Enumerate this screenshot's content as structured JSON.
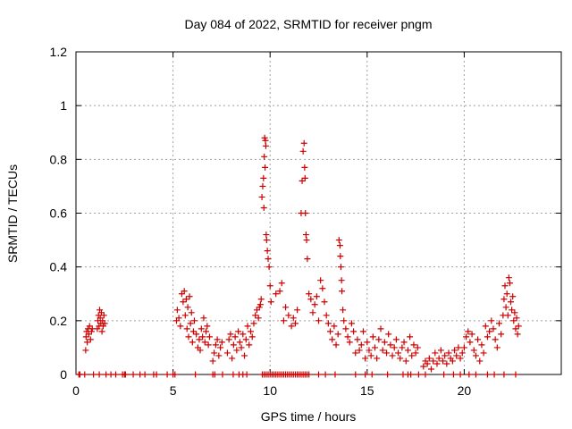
{
  "chart_data": {
    "type": "scatter",
    "title": "Day 084 of 2022, SRMTID for receiver pngm",
    "xlabel": "GPS time / hours",
    "ylabel": "SRMTID / TECUs",
    "xlim": [
      0,
      25
    ],
    "ylim": [
      0,
      1.2
    ],
    "x_ticks": [
      0,
      5,
      10,
      15,
      20
    ],
    "x_tick_labels": [
      "0",
      "5",
      "10",
      "15",
      "20"
    ],
    "y_ticks": [
      0,
      0.2,
      0.4,
      0.6,
      0.8,
      1.0,
      1.2
    ],
    "y_tick_labels": [
      "0",
      "0.2",
      "0.4",
      "0.6",
      "0.8",
      "1",
      "1.2"
    ],
    "grid": true,
    "legend": "none",
    "marker": "+",
    "marker_color": "#cc0000",
    "series": [
      {
        "name": "SRMTID",
        "x": [
          0.5,
          0.52,
          0.55,
          0.58,
          0.62,
          0.66,
          0.7,
          0.75,
          0.8,
          0.84,
          1.1,
          1.13,
          1.16,
          1.19,
          1.22,
          1.25,
          1.28,
          1.31,
          1.34,
          1.37,
          1.4,
          1.44,
          1.48,
          5.18,
          5.22,
          5.3,
          5.38,
          5.45,
          5.52,
          5.58,
          5.63,
          5.68,
          5.72,
          5.76,
          5.8,
          5.85,
          5.9,
          5.95,
          6.0,
          6.05,
          6.1,
          6.2,
          6.28,
          6.35,
          6.4,
          6.46,
          6.52,
          6.58,
          6.64,
          6.7,
          6.76,
          6.82,
          6.88,
          7.05,
          7.12,
          7.2,
          7.28,
          7.36,
          7.44,
          7.52,
          7.8,
          7.88,
          7.96,
          8.04,
          8.12,
          8.2,
          8.28,
          8.36,
          8.44,
          8.52,
          8.6,
          8.68,
          8.76,
          8.84,
          8.92,
          9.0,
          9.08,
          9.16,
          9.24,
          9.32,
          9.4,
          9.45,
          9.5,
          9.54,
          9.58,
          9.62,
          9.66,
          9.68,
          9.7,
          9.72,
          9.74,
          9.76,
          9.78,
          9.8,
          9.82,
          9.86,
          9.9,
          9.95,
          10.0,
          10.05,
          10.3,
          10.5,
          10.6,
          10.7,
          10.8,
          10.95,
          11.1,
          11.2,
          11.3,
          11.4,
          11.6,
          11.65,
          11.7,
          11.75,
          11.78,
          11.8,
          11.82,
          11.85,
          11.88,
          11.92,
          12.0,
          12.1,
          12.2,
          12.3,
          12.4,
          12.5,
          12.6,
          12.7,
          12.8,
          12.9,
          13.0,
          13.1,
          13.2,
          13.3,
          13.4,
          13.5,
          13.55,
          13.6,
          13.62,
          13.65,
          13.68,
          13.7,
          13.75,
          13.8,
          13.9,
          14.0,
          14.1,
          14.2,
          14.3,
          14.4,
          14.5,
          14.6,
          14.7,
          14.8,
          14.9,
          15.0,
          15.1,
          15.2,
          15.3,
          15.4,
          15.5,
          15.6,
          15.7,
          15.8,
          15.9,
          16.0,
          16.1,
          16.2,
          16.3,
          16.4,
          16.5,
          16.6,
          16.7,
          16.8,
          16.9,
          17.0,
          17.1,
          17.2,
          17.3,
          17.4,
          17.5,
          17.6,
          17.9,
          18.0,
          18.1,
          18.2,
          18.3,
          18.4,
          18.5,
          18.6,
          18.7,
          18.8,
          18.9,
          19.0,
          19.1,
          19.2,
          19.3,
          19.4,
          19.5,
          19.6,
          19.7,
          19.8,
          19.9,
          20.0,
          20.1,
          20.2,
          20.3,
          20.4,
          20.5,
          20.6,
          20.7,
          20.8,
          20.9,
          21.0,
          21.1,
          21.2,
          21.3,
          21.4,
          21.5,
          21.6,
          21.7,
          21.8,
          21.9,
          22.0,
          22.05,
          22.1,
          22.15,
          22.2,
          22.25,
          22.3,
          22.35,
          22.4,
          22.45,
          22.5,
          22.55,
          22.6,
          22.65,
          22.7,
          22.75,
          22.8,
          9.6,
          9.7,
          9.8,
          9.9,
          10.0,
          10.1,
          10.2,
          10.3,
          10.4,
          10.5,
          10.6,
          10.7,
          10.8,
          10.9,
          11.0,
          11.1,
          11.2,
          11.3,
          11.4,
          11.5,
          11.6,
          11.7,
          11.8,
          11.9,
          12.0,
          0.15,
          0.2,
          0.45,
          0.9,
          1.2,
          1.55,
          1.8,
          2.05,
          2.4,
          2.5,
          2.55,
          2.95,
          3.3,
          3.55,
          4.0,
          4.15,
          4.7,
          5.0,
          5.1,
          6.15,
          7.05,
          7.15,
          7.55,
          8.1,
          8.4,
          8.6,
          8.8,
          12.5,
          12.85,
          13.35,
          14.4,
          14.9,
          15.25,
          16.05,
          16.85,
          17.1,
          17.25,
          17.65,
          18.0,
          18.95,
          19.45,
          19.8,
          20.25,
          20.6,
          21.2,
          21.55,
          22.05,
          22.65
        ],
        "y": [
          0.09,
          0.14,
          0.16,
          0.12,
          0.17,
          0.15,
          0.18,
          0.13,
          0.16,
          0.17,
          0.17,
          0.2,
          0.22,
          0.18,
          0.24,
          0.21,
          0.19,
          0.23,
          0.16,
          0.2,
          0.18,
          0.22,
          0.19,
          0.2,
          0.24,
          0.21,
          0.18,
          0.3,
          0.27,
          0.31,
          0.22,
          0.28,
          0.17,
          0.25,
          0.14,
          0.29,
          0.19,
          0.23,
          0.12,
          0.16,
          0.2,
          0.15,
          0.1,
          0.13,
          0.09,
          0.17,
          0.14,
          0.21,
          0.12,
          0.16,
          0.18,
          0.11,
          0.14,
          0.05,
          0.08,
          0.11,
          0.13,
          0.07,
          0.1,
          0.12,
          0.08,
          0.13,
          0.15,
          0.06,
          0.11,
          0.14,
          0.09,
          0.16,
          0.12,
          0.1,
          0.15,
          0.07,
          0.13,
          0.18,
          0.11,
          0.16,
          0.14,
          0.19,
          0.22,
          0.24,
          0.21,
          0.25,
          0.26,
          0.28,
          0.66,
          0.7,
          0.73,
          0.62,
          0.81,
          0.88,
          0.77,
          0.87,
          0.85,
          0.52,
          0.5,
          0.46,
          0.43,
          0.4,
          0.33,
          0.27,
          0.3,
          0.31,
          0.34,
          0.2,
          0.25,
          0.22,
          0.18,
          0.21,
          0.19,
          0.24,
          0.6,
          0.72,
          0.83,
          0.86,
          0.77,
          0.73,
          0.6,
          0.52,
          0.5,
          0.43,
          0.3,
          0.28,
          0.23,
          0.26,
          0.29,
          0.2,
          0.35,
          0.32,
          0.27,
          0.22,
          0.19,
          0.16,
          0.13,
          0.18,
          0.11,
          0.15,
          0.5,
          0.48,
          0.44,
          0.4,
          0.35,
          0.31,
          0.24,
          0.2,
          0.17,
          0.14,
          0.12,
          0.19,
          0.16,
          0.08,
          0.13,
          0.09,
          0.11,
          0.16,
          0.06,
          0.12,
          0.09,
          0.07,
          0.14,
          0.1,
          0.06,
          0.13,
          0.17,
          0.09,
          0.12,
          0.08,
          0.15,
          0.11,
          0.07,
          0.1,
          0.13,
          0.08,
          0.06,
          0.1,
          0.12,
          0.05,
          0.09,
          0.14,
          0.07,
          0.11,
          0.08,
          0.1,
          0.03,
          0.05,
          0.04,
          0.06,
          0.02,
          0.05,
          0.08,
          0.04,
          0.06,
          0.09,
          0.05,
          0.07,
          0.04,
          0.08,
          0.06,
          0.05,
          0.09,
          0.07,
          0.1,
          0.06,
          0.08,
          0.1,
          0.14,
          0.16,
          0.12,
          0.15,
          0.09,
          0.07,
          0.13,
          0.05,
          0.11,
          0.08,
          0.18,
          0.14,
          0.16,
          0.2,
          0.17,
          0.13,
          0.1,
          0.19,
          0.15,
          0.22,
          0.28,
          0.33,
          0.25,
          0.3,
          0.22,
          0.36,
          0.34,
          0.27,
          0.24,
          0.29,
          0.2,
          0.23,
          0.17,
          0.21,
          0.15,
          0.18,
          0.0,
          0.0,
          0.0,
          0.0,
          0.0,
          0.0,
          0.0,
          0.0,
          0.0,
          0.0,
          0.0,
          0.0,
          0.0,
          0.0,
          0.0,
          0.0,
          0.0,
          0.0,
          0.0,
          0.0,
          0.0,
          0.0,
          0.0,
          0.0,
          0.0,
          0.0,
          0.0,
          0.0,
          0.0,
          0.0,
          0.0,
          0.0,
          0.0,
          0.0,
          0.0,
          0.0,
          0.0,
          0.0,
          0.0,
          0.0,
          0.0,
          0.0,
          0.0,
          0.0,
          0.0,
          0.0,
          0.0,
          0.0,
          0.0,
          0.0,
          0.0,
          0.0,
          0.0,
          0.0,
          0.0,
          0.0,
          0.0,
          0.0,
          0.0,
          0.0,
          0.0,
          0.0,
          0.0,
          0.0,
          0.0,
          0.0,
          0.0,
          0.0,
          0.0,
          0.0,
          0.0,
          0.0,
          0.0
        ]
      }
    ]
  }
}
